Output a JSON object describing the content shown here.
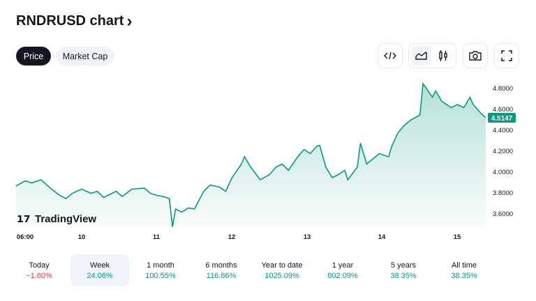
{
  "header": {
    "title": "RNDRUSD chart",
    "chevron": "›"
  },
  "tabs": [
    {
      "label": "Price",
      "active": true
    },
    {
      "label": "Market Cap",
      "active": false
    }
  ],
  "toolbar": {
    "icons": [
      "embed-code-icon",
      "area-chart-icon",
      "candlestick-icon",
      "camera-icon",
      "fullscreen-icon"
    ],
    "active": "area-chart-icon"
  },
  "watermark": "TradingView",
  "colors": {
    "line": "#089981",
    "up": "#089981",
    "down": "#f23645",
    "last_price_bg": "#089981"
  },
  "chart_data": {
    "type": "area",
    "y_ticks": [
      "4.8000",
      "4.6000",
      "4.4000",
      "4.2000",
      "4.0000",
      "3.8000",
      "3.6000"
    ],
    "x_ticks": [
      "06:00",
      "10",
      "11",
      "12",
      "13",
      "14",
      "15"
    ],
    "ylim": [
      3.47,
      4.9
    ],
    "last_price": "4.5147",
    "points": [
      [
        "9 03:00",
        3.86
      ],
      [
        "9 06:00",
        3.91
      ],
      [
        "9 08:00",
        3.89
      ],
      [
        "9 11:00",
        3.92
      ],
      [
        "9 14:00",
        3.84
      ],
      [
        "9 17:00",
        3.77
      ],
      [
        "9 19:00",
        3.74
      ],
      [
        "9 21:00",
        3.79
      ],
      [
        "10 00:00",
        3.83
      ],
      [
        "10 03:00",
        3.79
      ],
      [
        "10 05:00",
        3.81
      ],
      [
        "10 07:00",
        3.75
      ],
      [
        "10 11:00",
        3.81
      ],
      [
        "10 13:00",
        3.76
      ],
      [
        "10 16:00",
        3.83
      ],
      [
        "10 20:00",
        3.84
      ],
      [
        "10 22:00",
        3.79
      ],
      [
        "11 00:00",
        3.77
      ],
      [
        "11 02:00",
        3.76
      ],
      [
        "11 04:00",
        3.74
      ],
      [
        "11 05:00",
        3.47
      ],
      [
        "11 06:00",
        3.64
      ],
      [
        "11 08:00",
        3.61
      ],
      [
        "11 10:00",
        3.65
      ],
      [
        "11 12:00",
        3.64
      ],
      [
        "11 15:00",
        3.81
      ],
      [
        "11 17:00",
        3.87
      ],
      [
        "11 20:00",
        3.85
      ],
      [
        "11 22:00",
        3.81
      ],
      [
        "12 00:00",
        3.94
      ],
      [
        "12 03:00",
        4.07
      ],
      [
        "12 04:00",
        4.14
      ],
      [
        "12 06:00",
        4.04
      ],
      [
        "12 09:00",
        3.92
      ],
      [
        "12 12:00",
        3.97
      ],
      [
        "12 14:00",
        4.04
      ],
      [
        "12 16:00",
        4.07
      ],
      [
        "12 18:00",
        4.01
      ],
      [
        "12 21:00",
        4.14
      ],
      [
        "12 23:00",
        4.21
      ],
      [
        "13 01:00",
        4.17
      ],
      [
        "13 03:00",
        4.24
      ],
      [
        "13 04:00",
        4.25
      ],
      [
        "13 06:00",
        4.04
      ],
      [
        "13 08:00",
        3.94
      ],
      [
        "13 10:00",
        3.97
      ],
      [
        "13 12:00",
        4.01
      ],
      [
        "13 13:00",
        3.92
      ],
      [
        "13 16:00",
        4.04
      ],
      [
        "13 17:00",
        4.27
      ],
      [
        "13 19:00",
        4.07
      ],
      [
        "13 21:00",
        4.12
      ],
      [
        "13 23:00",
        4.17
      ],
      [
        "14 02:00",
        4.14
      ],
      [
        "14 03:00",
        4.24
      ],
      [
        "14 05:00",
        4.37
      ],
      [
        "14 07:00",
        4.44
      ],
      [
        "14 09:00",
        4.49
      ],
      [
        "14 12:00",
        4.54
      ],
      [
        "14 13:00",
        4.84
      ],
      [
        "14 16:00",
        4.71
      ],
      [
        "14 17:00",
        4.77
      ],
      [
        "14 19:00",
        4.67
      ],
      [
        "14 22:00",
        4.61
      ],
      [
        "15 00:00",
        4.64
      ],
      [
        "15 02:00",
        4.61
      ],
      [
        "15 04:00",
        4.71
      ],
      [
        "15 05:00",
        4.64
      ],
      [
        "15 08:00",
        4.54
      ],
      [
        "15 09:00",
        4.5147
      ]
    ]
  },
  "periods": [
    {
      "label": "Today",
      "value": "−1.60%",
      "dir": "down"
    },
    {
      "label": "Week",
      "value": "24.06%",
      "dir": "up",
      "active": true
    },
    {
      "label": "1 month",
      "value": "100.55%",
      "dir": "up"
    },
    {
      "label": "6 months",
      "value": "116.86%",
      "dir": "up"
    },
    {
      "label": "Year to date",
      "value": "1025.09%",
      "dir": "up"
    },
    {
      "label": "1 year",
      "value": "802.09%",
      "dir": "up"
    },
    {
      "label": "5 years",
      "value": "38.35%",
      "dir": "up"
    },
    {
      "label": "All time",
      "value": "38.35%",
      "dir": "up"
    }
  ]
}
